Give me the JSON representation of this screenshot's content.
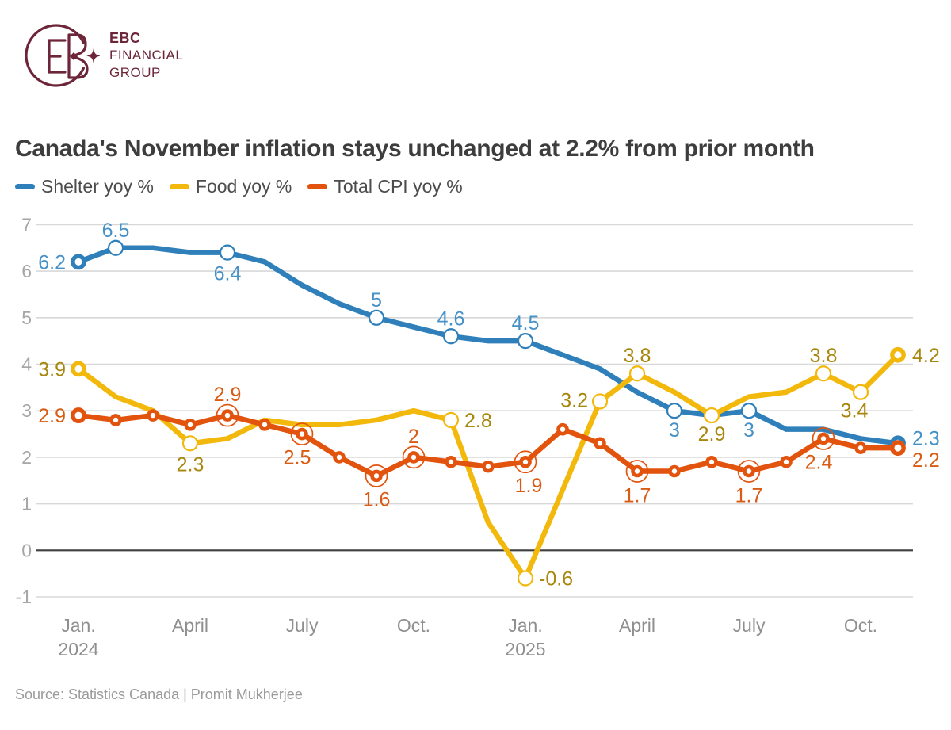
{
  "logo": {
    "brand_line1": "EBC",
    "brand_line2": "FINANCIAL",
    "brand_line3": "GROUP",
    "brand_color": "#6d2639"
  },
  "title": "Canada's November inflation stays unchanged at 2.2% from prior month",
  "source": "Source: Statistics Canada | Promit Mukherjee",
  "chart_data": {
    "type": "line",
    "title": "Canada's November inflation stays unchanged at 2.2% from prior month",
    "x_monthly": [
      "Jan 2024",
      "Feb 2024",
      "Mar 2024",
      "Apr 2024",
      "May 2024",
      "Jun 2024",
      "Jul 2024",
      "Aug 2024",
      "Sep 2024",
      "Oct 2024",
      "Nov 2024",
      "Dec 2024",
      "Jan 2025",
      "Feb 2025",
      "Mar 2025",
      "Apr 2025",
      "May 2025",
      "Jun 2025",
      "Jul 2025",
      "Aug 2025",
      "Sep 2025",
      "Oct 2025",
      "Nov 2025"
    ],
    "x_ticks": [
      {
        "index": 0,
        "line1": "Jan.",
        "line2": "2024"
      },
      {
        "index": 3,
        "line1": "April",
        "line2": ""
      },
      {
        "index": 6,
        "line1": "July",
        "line2": ""
      },
      {
        "index": 9,
        "line1": "Oct.",
        "line2": ""
      },
      {
        "index": 12,
        "line1": "Jan.",
        "line2": "2025"
      },
      {
        "index": 15,
        "line1": "April",
        "line2": ""
      },
      {
        "index": 18,
        "line1": "July",
        "line2": ""
      },
      {
        "index": 21,
        "line1": "Oct.",
        "line2": ""
      }
    ],
    "ylim": [
      -1,
      7
    ],
    "y_ticks": [
      7,
      6,
      5,
      4,
      3,
      2,
      1,
      0,
      -1
    ],
    "grid": true,
    "zero_line_color": "#3f3f3f",
    "grid_color": "#d8d8d8",
    "axis_label_color": "#a6a6a6",
    "x_label_color": "#8f8f8f",
    "legend_position": "top-left",
    "series": [
      {
        "name": "Shelter yoy %",
        "color": "#2f80ba",
        "label_color": "#4691c6",
        "values": [
          6.2,
          6.5,
          6.5,
          6.4,
          6.4,
          6.2,
          5.7,
          5.3,
          5.0,
          4.8,
          4.6,
          4.5,
          4.5,
          4.2,
          3.9,
          3.4,
          3.0,
          2.9,
          3.0,
          2.6,
          2.6,
          2.4,
          2.3
        ],
        "dot_every_point": false,
        "markers": [
          {
            "index": 0,
            "style": "end"
          },
          {
            "index": 1,
            "style": "open"
          },
          {
            "index": 4,
            "style": "open"
          },
          {
            "index": 8,
            "style": "open"
          },
          {
            "index": 10,
            "style": "open"
          },
          {
            "index": 12,
            "style": "open"
          },
          {
            "index": 16,
            "style": "open"
          },
          {
            "index": 18,
            "style": "open"
          },
          {
            "index": 22,
            "style": "end"
          }
        ],
        "labels": [
          {
            "index": 0,
            "text": "6.2",
            "anchor": "end",
            "dx": -16,
            "dy": 9
          },
          {
            "index": 1,
            "text": "6.5",
            "anchor": "middle",
            "dx": 0,
            "dy": -14
          },
          {
            "index": 4,
            "text": "6.4",
            "anchor": "middle",
            "dx": 0,
            "dy": 35
          },
          {
            "index": 8,
            "text": "5",
            "anchor": "middle",
            "dx": 0,
            "dy": -14
          },
          {
            "index": 10,
            "text": "4.6",
            "anchor": "middle",
            "dx": 0,
            "dy": -14
          },
          {
            "index": 12,
            "text": "4.5",
            "anchor": "middle",
            "dx": 0,
            "dy": -14
          },
          {
            "index": 16,
            "text": "3",
            "anchor": "middle",
            "dx": 0,
            "dy": 33
          },
          {
            "index": 18,
            "text": "3",
            "anchor": "middle",
            "dx": 0,
            "dy": 33
          },
          {
            "index": 22,
            "text": "2.3",
            "anchor": "start",
            "dx": 18,
            "dy": 2
          }
        ]
      },
      {
        "name": "Food yoy %",
        "color": "#f3b80c",
        "label_color": "#a8870f",
        "values": [
          3.9,
          3.3,
          3.0,
          2.3,
          2.4,
          2.8,
          2.7,
          2.7,
          2.8,
          3.0,
          2.8,
          0.6,
          -0.6,
          1.3,
          3.2,
          3.8,
          3.4,
          2.9,
          3.3,
          3.4,
          3.8,
          3.4,
          4.2
        ],
        "dot_every_point": false,
        "markers": [
          {
            "index": 0,
            "style": "end"
          },
          {
            "index": 3,
            "style": "open"
          },
          {
            "index": 10,
            "style": "open"
          },
          {
            "index": 12,
            "style": "open"
          },
          {
            "index": 14,
            "style": "open"
          },
          {
            "index": 15,
            "style": "open"
          },
          {
            "index": 17,
            "style": "open"
          },
          {
            "index": 20,
            "style": "open"
          },
          {
            "index": 21,
            "style": "open"
          },
          {
            "index": 22,
            "style": "end"
          }
        ],
        "labels": [
          {
            "index": 0,
            "text": "3.9",
            "anchor": "end",
            "dx": -16,
            "dy": 9
          },
          {
            "index": 3,
            "text": "2.3",
            "anchor": "middle",
            "dx": 0,
            "dy": 35
          },
          {
            "index": 10,
            "text": "2.8",
            "anchor": "start",
            "dx": 17,
            "dy": 9
          },
          {
            "index": 12,
            "text": "-0.6",
            "anchor": "start",
            "dx": 17,
            "dy": 9
          },
          {
            "index": 14,
            "text": "3.2",
            "anchor": "end",
            "dx": -15,
            "dy": 7
          },
          {
            "index": 15,
            "text": "3.8",
            "anchor": "middle",
            "dx": 0,
            "dy": -14
          },
          {
            "index": 17,
            "text": "2.9",
            "anchor": "middle",
            "dx": 0,
            "dy": 32
          },
          {
            "index": 20,
            "text": "3.8",
            "anchor": "middle",
            "dx": 0,
            "dy": -14
          },
          {
            "index": 21,
            "text": "3.4",
            "anchor": "middle",
            "dx": -8,
            "dy": 32
          },
          {
            "index": 22,
            "text": "4.2",
            "anchor": "start",
            "dx": 18,
            "dy": 9
          }
        ]
      },
      {
        "name": "Total CPI yoy %",
        "color": "#e2540e",
        "label_color": "#d95c14",
        "values": [
          2.9,
          2.8,
          2.9,
          2.7,
          2.9,
          2.7,
          2.5,
          2.0,
          1.6,
          2.0,
          1.9,
          1.8,
          1.9,
          2.6,
          2.3,
          1.7,
          1.7,
          1.9,
          1.7,
          1.9,
          2.4,
          2.2,
          2.2
        ],
        "dot_every_point": true,
        "markers": [
          {
            "index": 0,
            "style": "end"
          },
          {
            "index": 4,
            "style": "ring"
          },
          {
            "index": 6,
            "style": "ring"
          },
          {
            "index": 8,
            "style": "ring"
          },
          {
            "index": 9,
            "style": "ring"
          },
          {
            "index": 12,
            "style": "ring"
          },
          {
            "index": 15,
            "style": "ring"
          },
          {
            "index": 18,
            "style": "ring"
          },
          {
            "index": 20,
            "style": "ring"
          },
          {
            "index": 22,
            "style": "end"
          }
        ],
        "labels": [
          {
            "index": 0,
            "text": "2.9",
            "anchor": "end",
            "dx": -16,
            "dy": 9
          },
          {
            "index": 4,
            "text": "2.9",
            "anchor": "middle",
            "dx": 0,
            "dy": -18
          },
          {
            "index": 6,
            "text": "2.5",
            "anchor": "middle",
            "dx": -6,
            "dy": 38
          },
          {
            "index": 8,
            "text": "1.6",
            "anchor": "middle",
            "dx": 0,
            "dy": 38
          },
          {
            "index": 9,
            "text": "2",
            "anchor": "middle",
            "dx": 0,
            "dy": -18
          },
          {
            "index": 12,
            "text": "1.9",
            "anchor": "middle",
            "dx": 4,
            "dy": 38
          },
          {
            "index": 15,
            "text": "1.7",
            "anchor": "middle",
            "dx": 0,
            "dy": 39
          },
          {
            "index": 18,
            "text": "1.7",
            "anchor": "middle",
            "dx": 0,
            "dy": 39
          },
          {
            "index": 20,
            "text": "2.4",
            "anchor": "middle",
            "dx": -6,
            "dy": 38
          },
          {
            "index": 22,
            "text": "2.2",
            "anchor": "start",
            "dx": 18,
            "dy": 24
          }
        ]
      }
    ]
  }
}
